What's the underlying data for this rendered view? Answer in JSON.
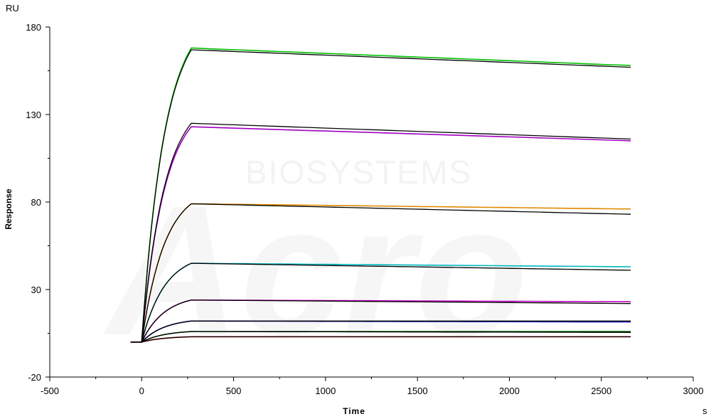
{
  "chart_data": {
    "type": "line",
    "title": "",
    "xlabel": "Time",
    "ylabel": "Response",
    "x_unit": "s",
    "y_unit": "RU",
    "xlim": [
      -500,
      3000
    ],
    "ylim": [
      -20,
      180
    ],
    "x_ticks": [
      -500,
      0,
      500,
      1000,
      1500,
      2000,
      2500,
      3000
    ],
    "y_ticks": [
      -20,
      30,
      80,
      130,
      180
    ],
    "grid": false,
    "legend": "none",
    "watermark": "BIOSYSTEMS",
    "association_end_s": 270,
    "dissociation_end_s": 2660,
    "baseline_start_s": -60,
    "series": [
      {
        "color": "#00c000",
        "points": [
          [
            -60,
            0
          ],
          [
            0,
            0
          ],
          [
            270,
            168
          ],
          [
            2660,
            158
          ]
        ]
      },
      {
        "color": "#a000c0",
        "points": [
          [
            -60,
            0
          ],
          [
            0,
            0
          ],
          [
            270,
            123
          ],
          [
            2660,
            115
          ]
        ]
      },
      {
        "color": "#e08a00",
        "points": [
          [
            -60,
            0
          ],
          [
            0,
            0
          ],
          [
            270,
            79
          ],
          [
            2660,
            76
          ]
        ]
      },
      {
        "color": "#00b8c0",
        "points": [
          [
            -60,
            0
          ],
          [
            0,
            0
          ],
          [
            270,
            45
          ],
          [
            2660,
            43
          ]
        ]
      },
      {
        "color": "#c000c0",
        "points": [
          [
            -60,
            0
          ],
          [
            0,
            0
          ],
          [
            270,
            24
          ],
          [
            2660,
            23
          ]
        ]
      },
      {
        "color": "#0000c0",
        "points": [
          [
            -60,
            0
          ],
          [
            0,
            0
          ],
          [
            270,
            12
          ],
          [
            2660,
            11.5
          ]
        ]
      },
      {
        "color": "#006000",
        "points": [
          [
            -60,
            0
          ],
          [
            0,
            0
          ],
          [
            270,
            6
          ],
          [
            2660,
            6
          ]
        ]
      },
      {
        "color": "#e00000",
        "points": [
          [
            -60,
            0
          ],
          [
            0,
            0
          ],
          [
            270,
            3
          ],
          [
            2660,
            3
          ]
        ]
      }
    ],
    "fits": [
      {
        "points": [
          [
            -60,
            0
          ],
          [
            0,
            0
          ],
          [
            270,
            167
          ],
          [
            2660,
            157
          ]
        ]
      },
      {
        "points": [
          [
            -60,
            0
          ],
          [
            0,
            0
          ],
          [
            270,
            125
          ],
          [
            2660,
            116
          ]
        ]
      },
      {
        "points": [
          [
            -60,
            0
          ],
          [
            0,
            0
          ],
          [
            270,
            79
          ],
          [
            2660,
            73
          ]
        ]
      },
      {
        "points": [
          [
            -60,
            0
          ],
          [
            0,
            0
          ],
          [
            270,
            45
          ],
          [
            2660,
            41
          ]
        ]
      },
      {
        "points": [
          [
            -60,
            0
          ],
          [
            0,
            0
          ],
          [
            270,
            24
          ],
          [
            2660,
            22
          ]
        ]
      },
      {
        "points": [
          [
            -60,
            0
          ],
          [
            0,
            0
          ],
          [
            270,
            12
          ],
          [
            2660,
            12
          ]
        ]
      },
      {
        "points": [
          [
            -60,
            0
          ],
          [
            0,
            0
          ],
          [
            270,
            6
          ],
          [
            2660,
            5.5
          ]
        ]
      },
      {
        "points": [
          [
            -60,
            0
          ],
          [
            0,
            0
          ],
          [
            270,
            3
          ],
          [
            2660,
            3
          ]
        ]
      }
    ]
  }
}
